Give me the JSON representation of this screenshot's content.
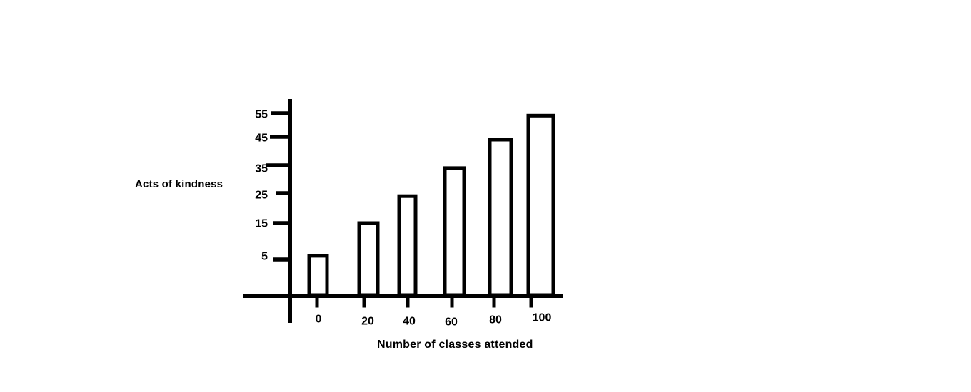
{
  "page": {
    "background_color": "#ffffff",
    "ink_color": "#000000"
  },
  "chart_data": {
    "type": "bar",
    "title": "",
    "xlabel": "Number of classes attended",
    "ylabel": "Acts of kindness",
    "categories": [
      "0",
      "20",
      "40",
      "60",
      "80",
      "100"
    ],
    "series": [
      {
        "name": "Acts of kindness",
        "values": [
          6,
          15,
          24,
          34,
          44,
          54
        ]
      }
    ],
    "y_ticks": [
      5,
      15,
      25,
      35,
      45,
      55
    ],
    "ylim": [
      0,
      58
    ],
    "xlim_labels": [
      0,
      100
    ],
    "grid": false,
    "legend_position": "none",
    "bar_fill": "#ffffff",
    "bar_stroke": "#000000",
    "style_note": "hand-drawn scanned look, thick black strokes on white"
  }
}
